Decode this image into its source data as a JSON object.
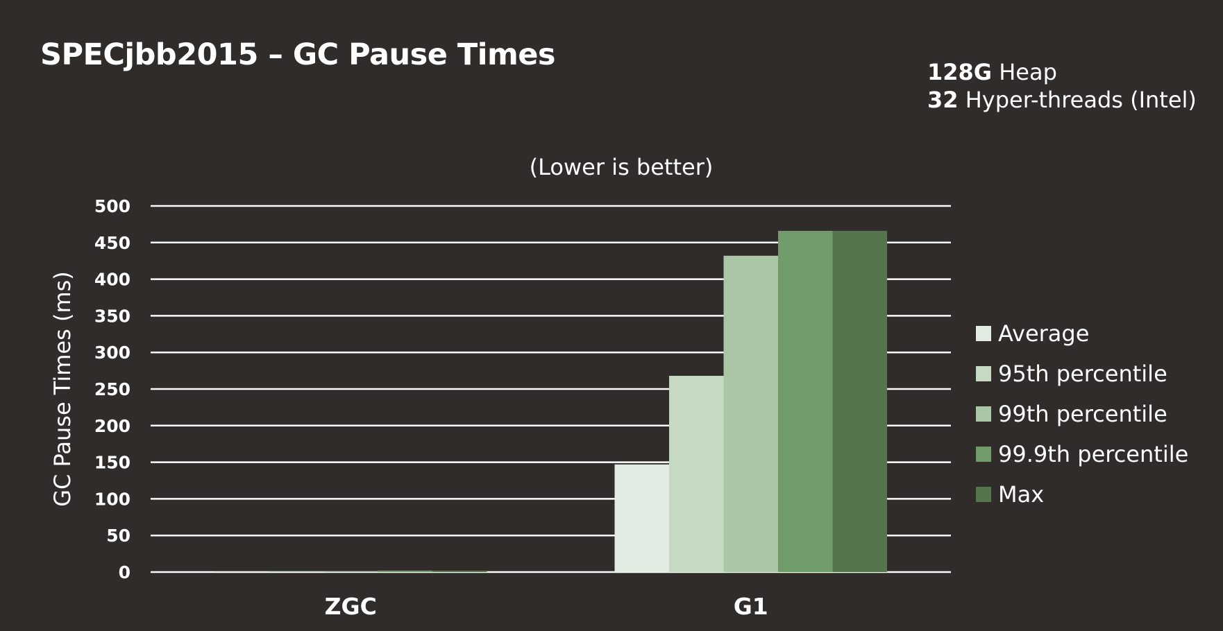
{
  "slide": {
    "title": "SPECjbb2015 – GC Pause Times",
    "spec": {
      "heap_value": "128G",
      "heap_label": " Heap",
      "threads_value": "32",
      "threads_label": " Hyper-threads (Intel)"
    }
  },
  "colors": {
    "background": "#302c29",
    "gridline": "#ffffff",
    "text": "#ffffff"
  },
  "chart_data": {
    "type": "bar",
    "subtitle": "(Lower is better)",
    "ylabel": "GC Pause Times (ms)",
    "xlabel": "",
    "categories": [
      "ZGC",
      "G1"
    ],
    "ylim": [
      0,
      500
    ],
    "yticks": [
      0,
      50,
      100,
      150,
      200,
      250,
      300,
      350,
      400,
      450,
      500
    ],
    "grid": true,
    "legend_position": "right",
    "series": [
      {
        "name": "Average",
        "color": "#e3ece2",
        "values": [
          1,
          147
        ]
      },
      {
        "name": "95th percentile",
        "color": "#c5d9c3",
        "values": [
          1,
          268
        ]
      },
      {
        "name": "99th percentile",
        "color": "#aac6a7",
        "values": [
          1,
          432
        ]
      },
      {
        "name": "99.9th percentile",
        "color": "#709b6a",
        "values": [
          2,
          466
        ]
      },
      {
        "name": "Max",
        "color": "#55754e",
        "values": [
          2,
          466
        ]
      }
    ]
  }
}
